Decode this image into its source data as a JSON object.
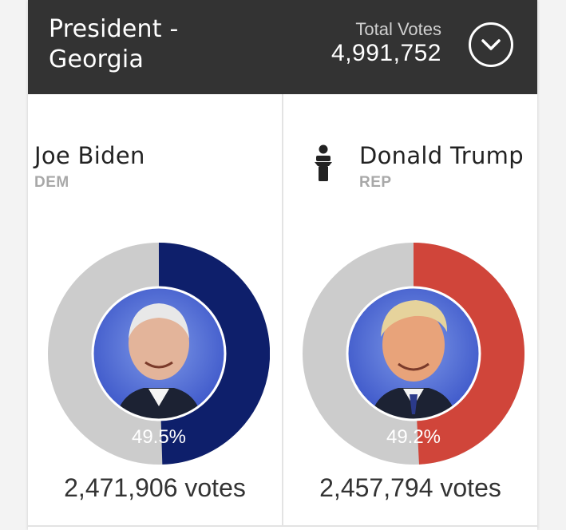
{
  "race": {
    "title": "President - Georgia"
  },
  "total": {
    "label": "Total Votes",
    "value": "4,991,752"
  },
  "colors": {
    "header_bg": "#333333",
    "dem": "#0e1f6b",
    "rep": "#d0453a",
    "remainder": "#cccccc"
  },
  "candidates": [
    {
      "name": "Joe Biden",
      "party": "DEM",
      "percent": "49.5%",
      "share": 0.495,
      "votes": "2,471,906 votes",
      "color": "#0e1f6b",
      "photo": "biden-photo"
    },
    {
      "name": "Donald Trump",
      "party": "REP",
      "percent": "49.2%",
      "share": 0.492,
      "votes": "2,457,794 votes",
      "color": "#d0453a",
      "photo": "trump-photo",
      "winner_icon": "podium-icon"
    }
  ]
}
